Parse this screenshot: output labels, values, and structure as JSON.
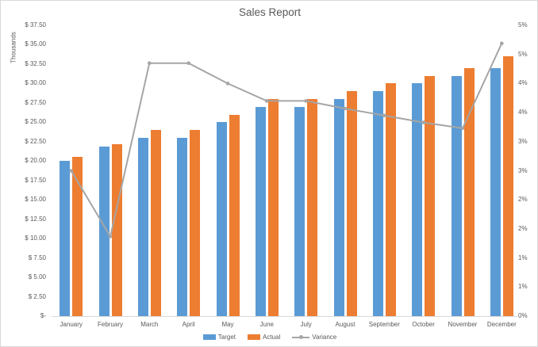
{
  "chart_data": {
    "type": "combo",
    "title": "Sales Report",
    "categories": [
      "January",
      "February",
      "March",
      "April",
      "May",
      "June",
      "July",
      "August",
      "September",
      "October",
      "November",
      "December"
    ],
    "series": [
      {
        "name": "Target",
        "type": "bar",
        "axis": "left",
        "color": "#5B9BD5",
        "values_thousands": [
          20,
          21.9,
          23,
          23,
          25,
          27,
          27,
          28,
          29,
          30,
          31,
          32
        ]
      },
      {
        "name": "Actual",
        "type": "bar",
        "axis": "left",
        "color": "#ED7D31",
        "values_thousands": [
          20.5,
          22.2,
          24,
          24,
          26,
          28,
          28,
          29,
          30,
          31,
          32,
          33.5
        ]
      },
      {
        "name": "Variance",
        "type": "line",
        "axis": "right",
        "color": "#A5A5A5",
        "values_percent": [
          2.5,
          1.37,
          4.35,
          4.35,
          4.0,
          3.7,
          3.7,
          3.57,
          3.45,
          3.33,
          3.23,
          4.69
        ]
      }
    ],
    "left_axis": {
      "title": "Thousands",
      "min": 0,
      "max": 37.5,
      "step": 2.5,
      "tick_labels_bottom_to_top": [
        "$-",
        "$ 2.50",
        "$ 5.00",
        "$ 7.50",
        "$ 10.00",
        "$ 12.50",
        "$ 15.00",
        "$ 17.50",
        "$ 20.00",
        "$ 22.50",
        "$ 25.00",
        "$ 27.50",
        "$ 30.00",
        "$ 32.50",
        "$ 35.00",
        "$ 37.50"
      ]
    },
    "right_axis": {
      "min": 0,
      "max": 5,
      "step": 0.5,
      "tick_labels_bottom_to_top": [
        "0%",
        "1%",
        "1%",
        "2%",
        "2%",
        "3%",
        "3%",
        "4%",
        "4%",
        "5%",
        "5%"
      ]
    },
    "legend": {
      "position": "bottom",
      "entries": [
        "Target",
        "Actual",
        "Variance"
      ]
    },
    "gridlines": false
  },
  "colors": {
    "text": "#595959",
    "axis_line": "#d9d9d9",
    "frame_border": "#d9d9d9",
    "background": "#ffffff"
  }
}
